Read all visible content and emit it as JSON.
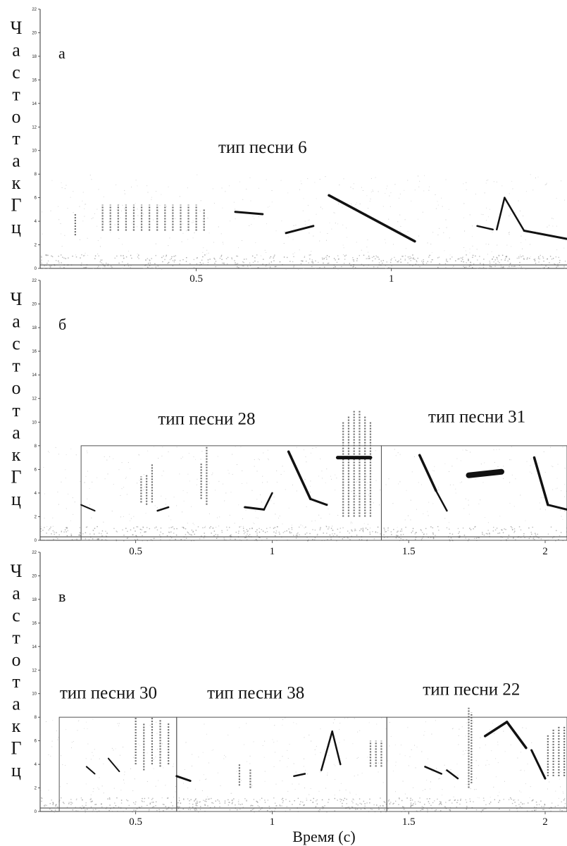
{
  "colors": {
    "ink": "#111111",
    "noise": "#9a9a9a",
    "box": "#555555"
  },
  "chart_data": [
    {
      "type": "heatmap",
      "panel_label": "а",
      "ylabel": "Частота кГц",
      "xlabel": "",
      "ylim": [
        0,
        22
      ],
      "yticks": [
        "0",
        "2",
        "4",
        "6",
        "8",
        "10",
        "12",
        "14",
        "16",
        "18",
        "20",
        "22"
      ],
      "xlim": [
        0.1,
        1.45
      ],
      "xticks": [
        {
          "value": 0.5,
          "label": "0.5"
        },
        {
          "value": 1,
          "label": "1"
        }
      ],
      "song_types": [
        {
          "label": "тип песни 6",
          "x_center": 0.67,
          "y": 9.8
        }
      ],
      "boxes": [],
      "strokes": [
        {
          "t": [
            0.84,
            1.06
          ],
          "f": [
            6.2,
            2.3
          ],
          "w": 3.5
        },
        {
          "t": [
            0.6,
            0.67
          ],
          "f": [
            4.8,
            4.6
          ],
          "w": 3
        },
        {
          "t": [
            0.73,
            0.8
          ],
          "f": [
            3.0,
            3.6
          ],
          "w": 3
        },
        {
          "t": [
            1.22,
            1.26
          ],
          "f": [
            3.6,
            3.3
          ],
          "w": 2.5
        },
        {
          "t": [
            1.27,
            1.29
          ],
          "f": [
            3.3,
            6.0
          ],
          "w": 2.5
        },
        {
          "t": [
            1.29,
            1.34
          ],
          "f": [
            6.0,
            3.2
          ],
          "w": 2.5
        },
        {
          "t": [
            1.34,
            1.45
          ],
          "f": [
            3.2,
            2.5
          ],
          "w": 3
        }
      ],
      "clicks": [
        {
          "t": 0.19,
          "f": [
            2.8,
            4.6
          ]
        },
        {
          "t": 0.26,
          "f": [
            3.2,
            5.4
          ]
        },
        {
          "t": 0.28,
          "f": [
            3.2,
            5.4
          ]
        },
        {
          "t": 0.3,
          "f": [
            3.2,
            5.4
          ]
        },
        {
          "t": 0.32,
          "f": [
            3.2,
            5.4
          ]
        },
        {
          "t": 0.34,
          "f": [
            3.2,
            5.4
          ]
        },
        {
          "t": 0.36,
          "f": [
            3.2,
            5.4
          ]
        },
        {
          "t": 0.38,
          "f": [
            3.2,
            5.4
          ]
        },
        {
          "t": 0.4,
          "f": [
            3.2,
            5.4
          ]
        },
        {
          "t": 0.42,
          "f": [
            3.2,
            5.4
          ]
        },
        {
          "t": 0.44,
          "f": [
            3.2,
            5.4
          ]
        },
        {
          "t": 0.46,
          "f": [
            3.2,
            5.4
          ]
        },
        {
          "t": 0.48,
          "f": [
            3.2,
            5.4
          ]
        },
        {
          "t": 0.5,
          "f": [
            3.2,
            5.4
          ]
        },
        {
          "t": 0.52,
          "f": [
            3.2,
            5.0
          ]
        }
      ]
    },
    {
      "type": "heatmap",
      "panel_label": "б",
      "ylabel": "Частота кГц",
      "xlabel": "",
      "ylim": [
        0,
        22
      ],
      "yticks": [
        "0",
        "2",
        "4",
        "6",
        "8",
        "10",
        "12",
        "14",
        "16",
        "18",
        "20",
        "22"
      ],
      "xlim": [
        0.15,
        2.08
      ],
      "xticks": [
        {
          "value": 0.5,
          "label": "0.5"
        },
        {
          "value": 1,
          "label": "1"
        },
        {
          "value": 1.5,
          "label": "1.5"
        },
        {
          "value": 2,
          "label": "2"
        }
      ],
      "song_types": [
        {
          "label": "тип песни 28",
          "x_center": 0.76,
          "y": 9.8
        },
        {
          "label": "тип песни 31",
          "x_center": 1.75,
          "y": 10.0
        }
      ],
      "boxes": [
        {
          "t0": 0.3,
          "t1": 1.4,
          "f0": 0,
          "f1": 8.0
        },
        {
          "t0": 1.4,
          "t1": 2.08,
          "f0": 0,
          "f1": 8.0
        }
      ],
      "strokes": [
        {
          "t": [
            1.06,
            1.14
          ],
          "f": [
            7.5,
            3.5
          ],
          "w": 3.5
        },
        {
          "t": [
            1.14,
            1.2
          ],
          "f": [
            3.5,
            3.0
          ],
          "w": 3
        },
        {
          "t": [
            0.9,
            0.97
          ],
          "f": [
            2.8,
            2.6
          ],
          "w": 3
        },
        {
          "t": [
            0.97,
            1.0
          ],
          "f": [
            2.6,
            4.0
          ],
          "w": 2.5
        },
        {
          "t": [
            1.24,
            1.36
          ],
          "f": [
            7.0,
            7.0
          ],
          "w": 5
        },
        {
          "t": [
            1.54,
            1.6
          ],
          "f": [
            7.2,
            4.2
          ],
          "w": 3.5
        },
        {
          "t": [
            1.6,
            1.64
          ],
          "f": [
            4.2,
            2.5
          ],
          "w": 2.5
        },
        {
          "t": [
            1.72,
            1.84
          ],
          "f": [
            5.5,
            5.8
          ],
          "w": 8
        },
        {
          "t": [
            1.96,
            2.01
          ],
          "f": [
            7.0,
            3.0
          ],
          "w": 3.5
        },
        {
          "t": [
            2.01,
            2.08
          ],
          "f": [
            3.0,
            2.6
          ],
          "w": 3
        },
        {
          "t": [
            0.3,
            0.35
          ],
          "f": [
            3.0,
            2.5
          ],
          "w": 2
        },
        {
          "t": [
            0.58,
            0.62
          ],
          "f": [
            2.5,
            2.8
          ],
          "w": 2.5
        }
      ],
      "clicks": [
        {
          "t": 0.52,
          "f": [
            3.2,
            5.4
          ]
        },
        {
          "t": 0.54,
          "f": [
            3.0,
            5.6
          ]
        },
        {
          "t": 0.56,
          "f": [
            3.2,
            6.5
          ]
        },
        {
          "t": 0.76,
          "f": [
            3.0,
            8.0
          ]
        },
        {
          "t": 0.74,
          "f": [
            3.5,
            6.5
          ]
        },
        {
          "t": 1.26,
          "f": [
            2.0,
            10.0
          ]
        },
        {
          "t": 1.28,
          "f": [
            2.0,
            10.5
          ]
        },
        {
          "t": 1.3,
          "f": [
            2.0,
            11.0
          ]
        },
        {
          "t": 1.32,
          "f": [
            2.0,
            11.0
          ]
        },
        {
          "t": 1.34,
          "f": [
            2.0,
            10.5
          ]
        },
        {
          "t": 1.36,
          "f": [
            2.0,
            10.0
          ]
        }
      ]
    },
    {
      "type": "heatmap",
      "panel_label": "в",
      "ylabel": "Частота кГц",
      "xlabel": "Время (с)",
      "ylim": [
        0,
        22
      ],
      "yticks": [
        "0",
        "2",
        "4",
        "6",
        "8",
        "10",
        "12",
        "14",
        "16",
        "18",
        "20",
        "22"
      ],
      "xlim": [
        0.15,
        2.08
      ],
      "xticks": [
        {
          "value": 0.5,
          "label": "0.5"
        },
        {
          "value": 1,
          "label": "1"
        },
        {
          "value": 1.5,
          "label": "1.5"
        },
        {
          "value": 2,
          "label": "2"
        }
      ],
      "song_types": [
        {
          "label": "тип песни 30",
          "x_center": 0.4,
          "y": 9.6
        },
        {
          "label": "тип песни 38",
          "x_center": 0.94,
          "y": 9.6
        },
        {
          "label": "тип песни 22",
          "x_center": 1.73,
          "y": 9.9
        }
      ],
      "boxes": [
        {
          "t0": 0.22,
          "t1": 0.65,
          "f0": 0,
          "f1": 8.0
        },
        {
          "t0": 0.65,
          "t1": 1.42,
          "f0": 0,
          "f1": 8.0
        },
        {
          "t0": 1.42,
          "t1": 2.08,
          "f0": 0,
          "f1": 8.0
        }
      ],
      "strokes": [
        {
          "t": [
            0.65,
            0.7
          ],
          "f": [
            3.0,
            2.6
          ],
          "w": 3
        },
        {
          "t": [
            1.08,
            1.12
          ],
          "f": [
            3.0,
            3.2
          ],
          "w": 2.5
        },
        {
          "t": [
            1.18,
            1.22
          ],
          "f": [
            3.5,
            6.8
          ],
          "w": 2.5
        },
        {
          "t": [
            1.22,
            1.25
          ],
          "f": [
            6.8,
            4.0
          ],
          "w": 2.5
        },
        {
          "t": [
            1.56,
            1.62
          ],
          "f": [
            3.8,
            3.2
          ],
          "w": 2.5
        },
        {
          "t": [
            1.64,
            1.68
          ],
          "f": [
            3.5,
            2.8
          ],
          "w": 2.5
        },
        {
          "t": [
            1.78,
            1.86
          ],
          "f": [
            6.4,
            7.6
          ],
          "w": 3.5
        },
        {
          "t": [
            1.86,
            1.93
          ],
          "f": [
            7.6,
            5.4
          ],
          "w": 3.5
        },
        {
          "t": [
            1.95,
            2.0
          ],
          "f": [
            5.2,
            2.8
          ],
          "w": 3
        },
        {
          "t": [
            0.32,
            0.35
          ],
          "f": [
            3.8,
            3.2
          ],
          "w": 2
        },
        {
          "t": [
            0.4,
            0.44
          ],
          "f": [
            4.5,
            3.4
          ],
          "w": 2
        }
      ],
      "clicks": [
        {
          "t": 0.5,
          "f": [
            4.0,
            8.0
          ]
        },
        {
          "t": 0.53,
          "f": [
            3.5,
            7.5
          ]
        },
        {
          "t": 0.56,
          "f": [
            4.0,
            8.0
          ]
        },
        {
          "t": 0.59,
          "f": [
            3.8,
            7.8
          ]
        },
        {
          "t": 0.62,
          "f": [
            4.0,
            7.5
          ]
        },
        {
          "t": 0.88,
          "f": [
            2.2,
            4.0
          ]
        },
        {
          "t": 0.92,
          "f": [
            2.0,
            3.6
          ]
        },
        {
          "t": 1.36,
          "f": [
            3.8,
            6.0
          ]
        },
        {
          "t": 1.38,
          "f": [
            3.8,
            6.0
          ]
        },
        {
          "t": 1.4,
          "f": [
            3.8,
            6.0
          ]
        },
        {
          "t": 1.72,
          "f": [
            2.0,
            8.8
          ]
        },
        {
          "t": 1.73,
          "f": [
            2.4,
            8.4
          ]
        },
        {
          "t": 2.01,
          "f": [
            3.0,
            6.5
          ]
        },
        {
          "t": 2.03,
          "f": [
            3.0,
            7.0
          ]
        },
        {
          "t": 2.05,
          "f": [
            3.0,
            7.2
          ]
        },
        {
          "t": 2.07,
          "f": [
            3.0,
            7.2
          ]
        }
      ]
    }
  ]
}
